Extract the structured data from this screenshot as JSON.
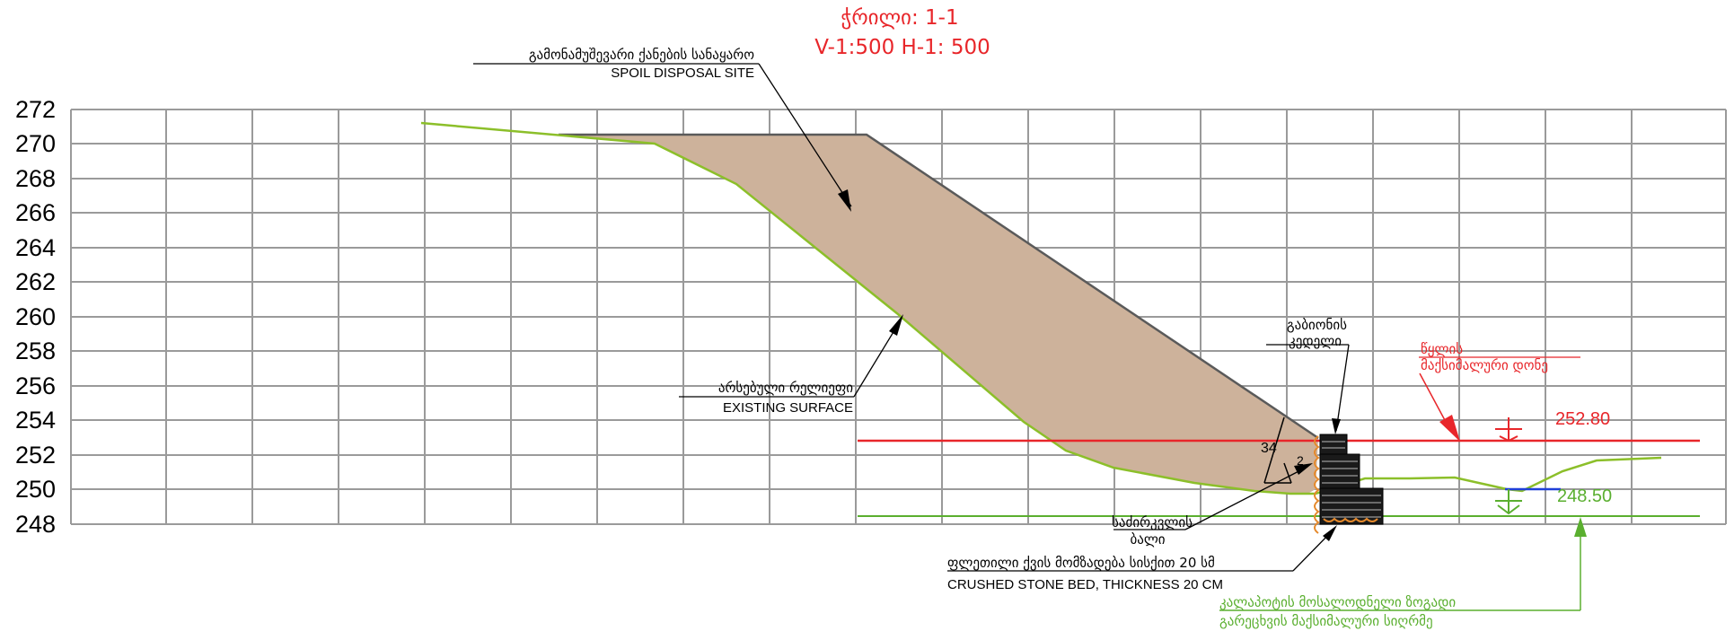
{
  "title": {
    "line1": "ჭრილი: 1-1",
    "line2": "V-1:500  H-1: 500"
  },
  "axis": {
    "y_ticks": [
      "272",
      "270",
      "268",
      "266",
      "264",
      "262",
      "260",
      "258",
      "256",
      "254",
      "252",
      "250",
      "248"
    ]
  },
  "labels": {
    "spoil_ka": "გამონამუშევარი ქანების სანაყარო",
    "spoil_en": "SPOIL DISPOSAL SITE",
    "surface_ka": "არსებული რელიეფი",
    "surface_en": "EXISTING SURFACE",
    "gabion_ka_1": "გაბიონის",
    "gabion_ka_2": "კედელი",
    "water_ka_1": "წყლის",
    "water_ka_2": "მაქსიმალური დონე",
    "water_level": "252.80",
    "design_level": "248.50",
    "slope_v": "3",
    "slope_h": "2",
    "slope_frac": "34",
    "bed_ka_1": "საძირკვლის",
    "bed_ka_2": "ბალი",
    "stone_ka": "ფლეთილი ქვის მომზადება  სისქით 20 სმ",
    "stone_en": "CRUSHED STONE BED, THICKNESS 20 CM",
    "flood_ka_1": "კალაპოტის მოსალოდნელი ზოგადი",
    "flood_ka_2": "გარეცხვის მაქსიმალური სიღრმე"
  },
  "colors": {
    "grid": "#9a9a9a",
    "fill": "#cdb29b",
    "spoil_outline": "#5a5a5a",
    "terrain": "#8cbf2a",
    "water": "#e8262a",
    "design": "#5aaf2f",
    "blue": "#1f3fd8",
    "orange": "#e5892b"
  },
  "icons": [
    "arrow-icon",
    "gabion-block-icon",
    "level-marker-icon"
  ]
}
